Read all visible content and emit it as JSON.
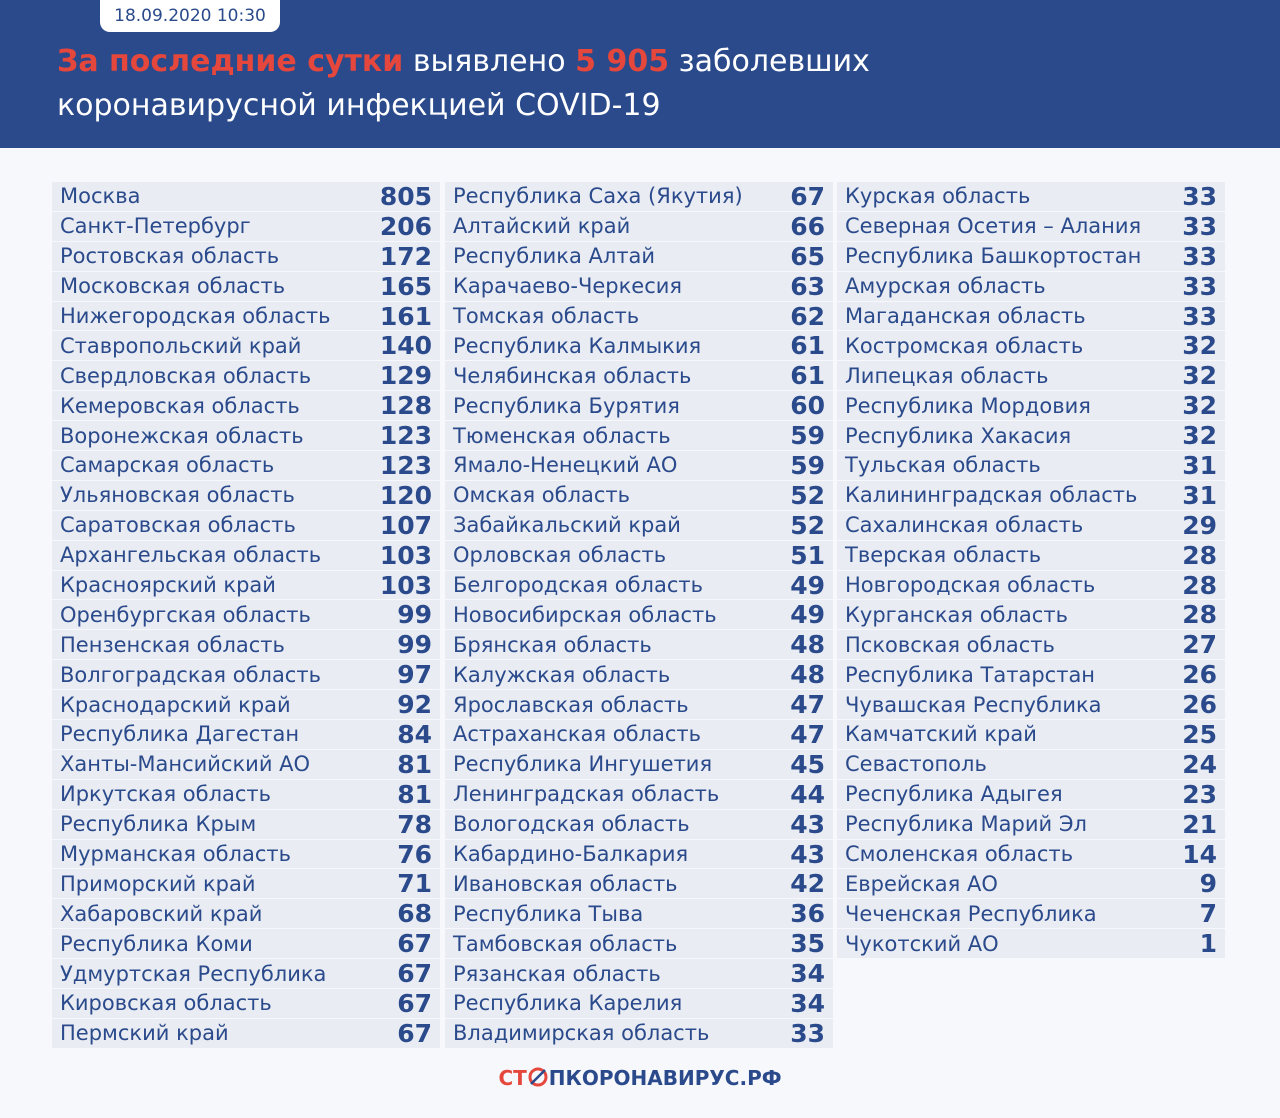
{
  "header": {
    "date": "18.09.2020 10:30",
    "title_highlight": "За последние сутки",
    "title_mid": "выявлено",
    "title_number": "5 905",
    "title_end": "заболевших коронавирусной инфекцией COVID-19"
  },
  "table": {
    "columns": [
      [
        [
          "Москва",
          805
        ],
        [
          "Санкт-Петербург",
          206
        ],
        [
          "Ростовская область",
          172
        ],
        [
          "Московская область",
          165
        ],
        [
          "Нижегородская область",
          161
        ],
        [
          "Ставропольский край",
          140
        ],
        [
          "Свердловская область",
          129
        ],
        [
          "Кемеровская область",
          128
        ],
        [
          "Воронежская область",
          123
        ],
        [
          "Самарская область",
          123
        ],
        [
          "Ульяновская область",
          120
        ],
        [
          "Саратовская область",
          107
        ],
        [
          "Архангельская область",
          103
        ],
        [
          "Красноярский край",
          103
        ],
        [
          "Оренбургская область",
          99
        ],
        [
          "Пензенская область",
          99
        ],
        [
          "Волгоградская область",
          97
        ],
        [
          "Краснодарский край",
          92
        ],
        [
          "Республика Дагестан",
          84
        ],
        [
          "Ханты-Мансийский АО",
          81
        ],
        [
          "Иркутская область",
          81
        ],
        [
          "Республика Крым",
          78
        ],
        [
          "Мурманская область",
          76
        ],
        [
          "Приморский край",
          71
        ],
        [
          "Хабаровский край",
          68
        ],
        [
          "Республика Коми",
          67
        ],
        [
          "Удмуртская Республика",
          67
        ],
        [
          "Кировская область",
          67
        ],
        [
          "Пермский край",
          67
        ]
      ],
      [
        [
          "Республика Саха (Якутия)",
          67
        ],
        [
          "Алтайский край",
          66
        ],
        [
          "Республика Алтай",
          65
        ],
        [
          "Карачаево-Черкесия",
          63
        ],
        [
          "Томская область",
          62
        ],
        [
          "Республика Калмыкия",
          61
        ],
        [
          "Челябинская область",
          61
        ],
        [
          "Республика Бурятия",
          60
        ],
        [
          "Тюменская область",
          59
        ],
        [
          "Ямало-Ненецкий АО",
          59
        ],
        [
          "Омская область",
          52
        ],
        [
          "Забайкальский край",
          52
        ],
        [
          "Орловская область",
          51
        ],
        [
          "Белгородская область",
          49
        ],
        [
          "Новосибирская область",
          49
        ],
        [
          "Брянская область",
          48
        ],
        [
          "Калужская область",
          48
        ],
        [
          "Ярославская область",
          47
        ],
        [
          "Астраханская область",
          47
        ],
        [
          "Республика Ингушетия",
          45
        ],
        [
          "Ленинградская область",
          44
        ],
        [
          "Вологодская область",
          43
        ],
        [
          "Кабардино-Балкария",
          43
        ],
        [
          "Ивановская область",
          42
        ],
        [
          "Республика Тыва",
          36
        ],
        [
          "Тамбовская область",
          35
        ],
        [
          "Рязанская область",
          34
        ],
        [
          "Республика Карелия",
          34
        ],
        [
          "Владимирская область",
          33
        ]
      ],
      [
        [
          "Курская область",
          33
        ],
        [
          "Северная Осетия – Алания",
          33
        ],
        [
          "Республика Башкортостан",
          33
        ],
        [
          "Амурская область",
          33
        ],
        [
          "Магаданская область",
          33
        ],
        [
          "Костромская область",
          32
        ],
        [
          "Липецкая область",
          32
        ],
        [
          "Республика Мордовия",
          32
        ],
        [
          "Республика Хакасия",
          32
        ],
        [
          "Тульская область",
          31
        ],
        [
          "Калининградская область",
          31
        ],
        [
          "Сахалинская область",
          29
        ],
        [
          "Тверская область",
          28
        ],
        [
          "Новгородская область",
          28
        ],
        [
          "Курганская область",
          28
        ],
        [
          "Псковская область",
          27
        ],
        [
          "Республика Татарстан",
          26
        ],
        [
          "Чувашская Республика",
          26
        ],
        [
          "Камчатский край",
          25
        ],
        [
          "Севастополь",
          24
        ],
        [
          "Республика Адыгея",
          23
        ],
        [
          "Республика Марий Эл",
          21
        ],
        [
          "Смоленская область",
          14
        ],
        [
          "Еврейская АО",
          9
        ],
        [
          "Чеченская Республика",
          7
        ],
        [
          "Чукотский АО",
          1
        ]
      ]
    ]
  },
  "footer": {
    "logo_start": "СТ",
    "logo_end": "ПКОРОНАВИРУС.РФ"
  }
}
